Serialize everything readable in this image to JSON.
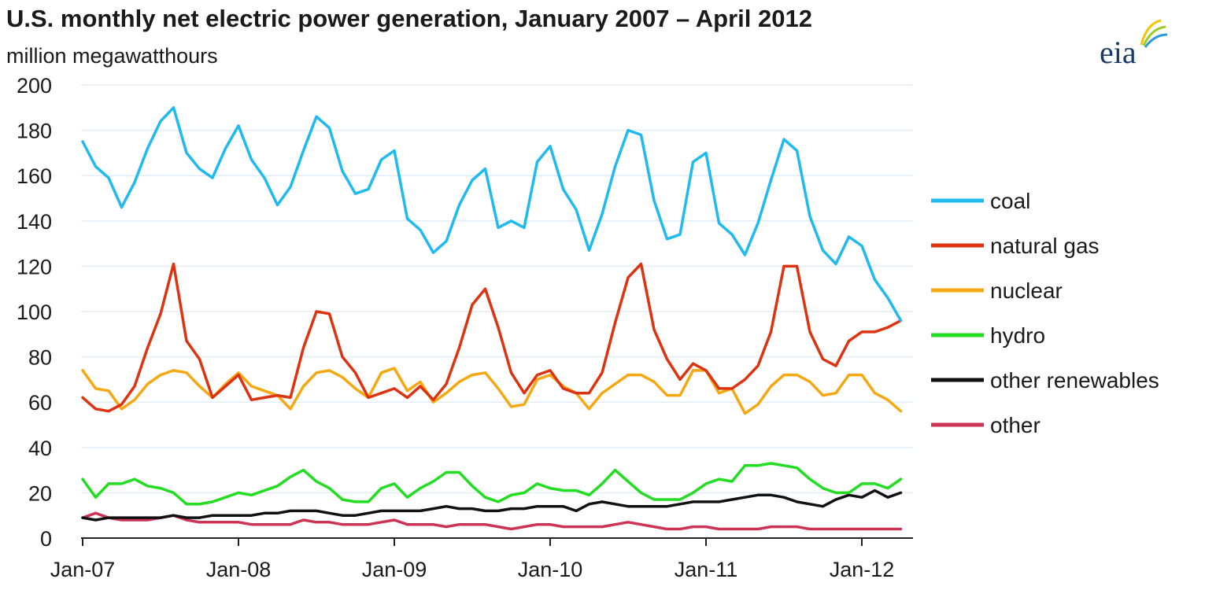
{
  "header": {
    "title": "U.S. monthly net electric power generation, January 2007 – April 2012",
    "logo_text": "eia"
  },
  "chart_data": {
    "type": "line",
    "title": "U.S. monthly net electric power generation, January 2007 – April 2012",
    "ylabel": "million megawatthours",
    "xlabel": "",
    "ylim": [
      0,
      200
    ],
    "yticks": [
      0,
      20,
      40,
      60,
      80,
      100,
      120,
      140,
      160,
      180,
      200
    ],
    "x_start": "Jan-07",
    "x_end": "Apr-12",
    "xticks": [
      "Jan-07",
      "Jan-08",
      "Jan-09",
      "Jan-10",
      "Jan-11",
      "Jan-12"
    ],
    "grid": true,
    "legend_position": "right",
    "series": [
      {
        "name": "coal",
        "color": "#1fbaf0",
        "values": [
          175,
          164,
          159,
          146,
          157,
          172,
          184,
          190,
          170,
          163,
          159,
          172,
          182,
          167,
          159,
          147,
          155,
          171,
          186,
          181,
          162,
          152,
          154,
          167,
          171,
          141,
          136,
          126,
          131,
          147,
          158,
          163,
          137,
          140,
          137,
          166,
          173,
          154,
          145,
          127,
          143,
          164,
          180,
          178,
          149,
          132,
          134,
          166,
          170,
          139,
          134,
          125,
          139,
          158,
          176,
          171,
          142,
          127,
          121,
          133,
          129,
          114,
          106,
          96
        ]
      },
      {
        "name": "natural gas",
        "color": "#dd3311",
        "values": [
          62,
          57,
          56,
          59,
          67,
          84,
          99,
          121,
          87,
          79,
          62,
          67,
          72,
          61,
          62,
          63,
          62,
          84,
          100,
          99,
          80,
          73,
          62,
          64,
          66,
          62,
          67,
          61,
          68,
          84,
          103,
          110,
          93,
          73,
          64,
          72,
          74,
          66,
          64,
          64,
          73,
          95,
          115,
          121,
          92,
          79,
          70,
          77,
          74,
          66,
          66,
          70,
          76,
          91,
          120,
          120,
          91,
          79,
          76,
          87,
          91,
          91,
          93,
          96
        ]
      },
      {
        "name": "nuclear",
        "color": "#f5a812",
        "values": [
          74,
          66,
          65,
          57,
          61,
          68,
          72,
          74,
          73,
          67,
          62,
          68,
          73,
          67,
          65,
          63,
          57,
          67,
          73,
          74,
          71,
          66,
          62,
          73,
          75,
          65,
          69,
          60,
          64,
          69,
          72,
          73,
          66,
          58,
          59,
          70,
          72,
          67,
          64,
          57,
          64,
          68,
          72,
          72,
          69,
          63,
          63,
          74,
          74,
          64,
          66,
          55,
          59,
          67,
          72,
          72,
          69,
          63,
          64,
          72,
          72,
          64,
          61,
          56
        ]
      },
      {
        "name": "hydro",
        "color": "#22dd22",
        "values": [
          26,
          18,
          24,
          24,
          26,
          23,
          22,
          20,
          15,
          15,
          16,
          18,
          20,
          19,
          21,
          23,
          27,
          30,
          25,
          22,
          17,
          16,
          16,
          22,
          24,
          18,
          22,
          25,
          29,
          29,
          23,
          18,
          16,
          19,
          20,
          24,
          22,
          21,
          21,
          19,
          24,
          30,
          25,
          20,
          17,
          17,
          17,
          20,
          24,
          26,
          25,
          32,
          32,
          33,
          32,
          31,
          26,
          22,
          20,
          20,
          24,
          24,
          22,
          26
        ]
      },
      {
        "name": "other renewables",
        "color": "#111111",
        "values": [
          9,
          8,
          9,
          9,
          9,
          9,
          9,
          10,
          9,
          9,
          10,
          10,
          10,
          10,
          11,
          11,
          12,
          12,
          12,
          11,
          10,
          10,
          11,
          12,
          12,
          12,
          12,
          13,
          14,
          13,
          13,
          12,
          12,
          13,
          13,
          14,
          14,
          14,
          12,
          15,
          16,
          15,
          14,
          14,
          14,
          14,
          15,
          16,
          16,
          16,
          17,
          18,
          19,
          19,
          18,
          16,
          15,
          14,
          17,
          19,
          18,
          21,
          18,
          20
        ]
      },
      {
        "name": "other",
        "color": "#cc3355",
        "values": [
          9,
          11,
          9,
          8,
          8,
          8,
          9,
          10,
          8,
          7,
          7,
          7,
          7,
          6,
          6,
          6,
          6,
          8,
          7,
          7,
          6,
          6,
          6,
          7,
          8,
          6,
          6,
          6,
          5,
          6,
          6,
          6,
          5,
          4,
          5,
          6,
          6,
          5,
          5,
          5,
          5,
          6,
          7,
          6,
          5,
          4,
          4,
          5,
          5,
          4,
          4,
          4,
          4,
          5,
          5,
          5,
          4,
          4,
          4,
          4,
          4,
          4,
          4,
          4
        ]
      }
    ]
  }
}
